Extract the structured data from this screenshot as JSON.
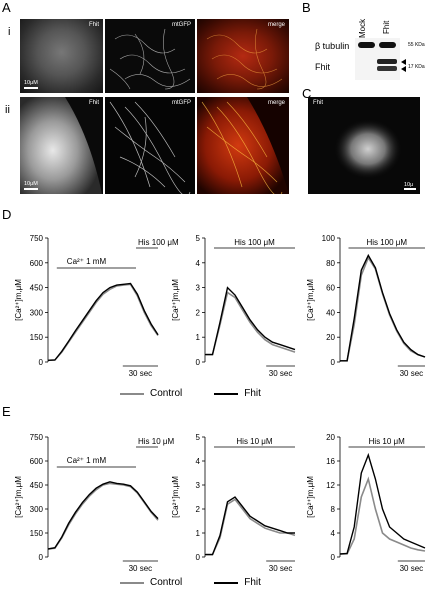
{
  "panels": {
    "A": "A",
    "B": "B",
    "C": "C",
    "D": "D",
    "E": "E",
    "Ai": "i",
    "Aii": "ii"
  },
  "micrographs": {
    "fhit": "Fhit",
    "mtgfp": "mtGFP",
    "merge": "merge",
    "scale": "10μM"
  },
  "western": {
    "lanes": [
      "Mock",
      "Fhit"
    ],
    "rows": [
      "β tubulin",
      "Fhit"
    ],
    "kda": [
      "55 KDa",
      "17 KDa"
    ]
  },
  "panelC": {
    "label": "Fhit",
    "scale": "10μ"
  },
  "graphs": {
    "ylabel": "[Ca²⁺]m,μM",
    "time": "30 sec",
    "ca": "Ca²⁺ 1 mM",
    "hisD": "His 100 μM",
    "hisE": "His 10 μM"
  },
  "legend": {
    "control": "Control",
    "fhit": "Fhit"
  },
  "colors": {
    "control": "#8a8a8a",
    "fhit": "#000000"
  },
  "chart_data": [
    {
      "id": "D1",
      "type": "line",
      "ylim": [
        0,
        750
      ],
      "yticks": [
        0,
        150,
        300,
        450,
        600,
        750
      ],
      "x": [
        0,
        5,
        10,
        15,
        20,
        25,
        30,
        35,
        40,
        45,
        50,
        55,
        60,
        65,
        70,
        75,
        80
      ],
      "series": [
        {
          "name": "Control",
          "values": [
            10,
            12,
            60,
            120,
            180,
            240,
            300,
            360,
            410,
            440,
            460,
            465,
            470,
            400,
            300,
            220,
            160
          ]
        },
        {
          "name": "Fhit",
          "values": [
            10,
            12,
            65,
            125,
            190,
            250,
            310,
            370,
            420,
            450,
            465,
            470,
            475,
            410,
            310,
            230,
            165
          ]
        }
      ]
    },
    {
      "id": "D2",
      "type": "line",
      "ylim": [
        0,
        5
      ],
      "yticks": [
        0,
        1,
        2,
        3,
        4,
        5
      ],
      "x": [
        0,
        5,
        10,
        15,
        20,
        25,
        30,
        35,
        40,
        45,
        50,
        55,
        60
      ],
      "series": [
        {
          "name": "Control",
          "values": [
            0.3,
            0.3,
            1.5,
            2.8,
            2.6,
            2.1,
            1.6,
            1.2,
            0.9,
            0.7,
            0.6,
            0.5,
            0.4
          ]
        },
        {
          "name": "Fhit",
          "values": [
            0.3,
            0.3,
            1.6,
            3.0,
            2.7,
            2.2,
            1.7,
            1.3,
            1.0,
            0.8,
            0.7,
            0.6,
            0.5
          ]
        }
      ]
    },
    {
      "id": "D3",
      "type": "line",
      "ylim": [
        0,
        100
      ],
      "yticks": [
        0,
        20,
        40,
        60,
        80,
        100
      ],
      "x": [
        0,
        5,
        10,
        15,
        20,
        25,
        30,
        35,
        40,
        45,
        50,
        55,
        60
      ],
      "series": [
        {
          "name": "Control",
          "values": [
            1,
            1,
            30,
            70,
            84,
            75,
            55,
            38,
            25,
            15,
            9,
            6,
            4
          ]
        },
        {
          "name": "Fhit",
          "values": [
            1,
            1,
            35,
            74,
            86,
            76,
            56,
            39,
            26,
            16,
            10,
            6,
            4
          ]
        }
      ]
    },
    {
      "id": "E1",
      "type": "line",
      "ylim": [
        0,
        750
      ],
      "yticks": [
        0,
        150,
        300,
        450,
        600,
        750
      ],
      "x": [
        0,
        5,
        10,
        15,
        20,
        25,
        30,
        35,
        40,
        45,
        50,
        55,
        60,
        65,
        70,
        75,
        80
      ],
      "series": [
        {
          "name": "Control",
          "values": [
            50,
            55,
            120,
            200,
            270,
            330,
            380,
            420,
            450,
            460,
            455,
            450,
            440,
            400,
            340,
            280,
            230
          ]
        },
        {
          "name": "Fhit",
          "values": [
            50,
            58,
            125,
            210,
            280,
            340,
            390,
            430,
            455,
            470,
            460,
            455,
            445,
            405,
            345,
            285,
            240
          ]
        }
      ]
    },
    {
      "id": "E2",
      "type": "line",
      "ylim": [
        0,
        5
      ],
      "yticks": [
        0,
        1,
        2,
        3,
        4,
        5
      ],
      "x": [
        0,
        5,
        10,
        15,
        20,
        25,
        30,
        35,
        40,
        45,
        50,
        55,
        60
      ],
      "series": [
        {
          "name": "Control",
          "values": [
            0.1,
            0.1,
            0.8,
            2.2,
            2.4,
            2.0,
            1.6,
            1.4,
            1.2,
            1.1,
            1.0,
            1.0,
            0.9
          ]
        },
        {
          "name": "Fhit",
          "values": [
            0.1,
            0.1,
            0.9,
            2.3,
            2.5,
            2.1,
            1.7,
            1.5,
            1.3,
            1.2,
            1.1,
            1.0,
            1.0
          ]
        }
      ]
    },
    {
      "id": "E3",
      "type": "line",
      "ylim": [
        0,
        20
      ],
      "yticks": [
        0,
        4,
        8,
        12,
        16,
        20
      ],
      "x": [
        0,
        5,
        10,
        15,
        20,
        25,
        30,
        35,
        40,
        45,
        50,
        55,
        60
      ],
      "series": [
        {
          "name": "Control",
          "values": [
            0.5,
            0.5,
            3,
            10,
            13,
            8,
            4,
            3,
            2.5,
            2,
            1.5,
            1.2,
            1
          ]
        },
        {
          "name": "Fhit",
          "values": [
            0.5,
            0.6,
            5,
            14,
            17,
            13,
            8,
            5,
            4,
            3,
            2.5,
            2,
            1.5
          ]
        }
      ]
    }
  ]
}
